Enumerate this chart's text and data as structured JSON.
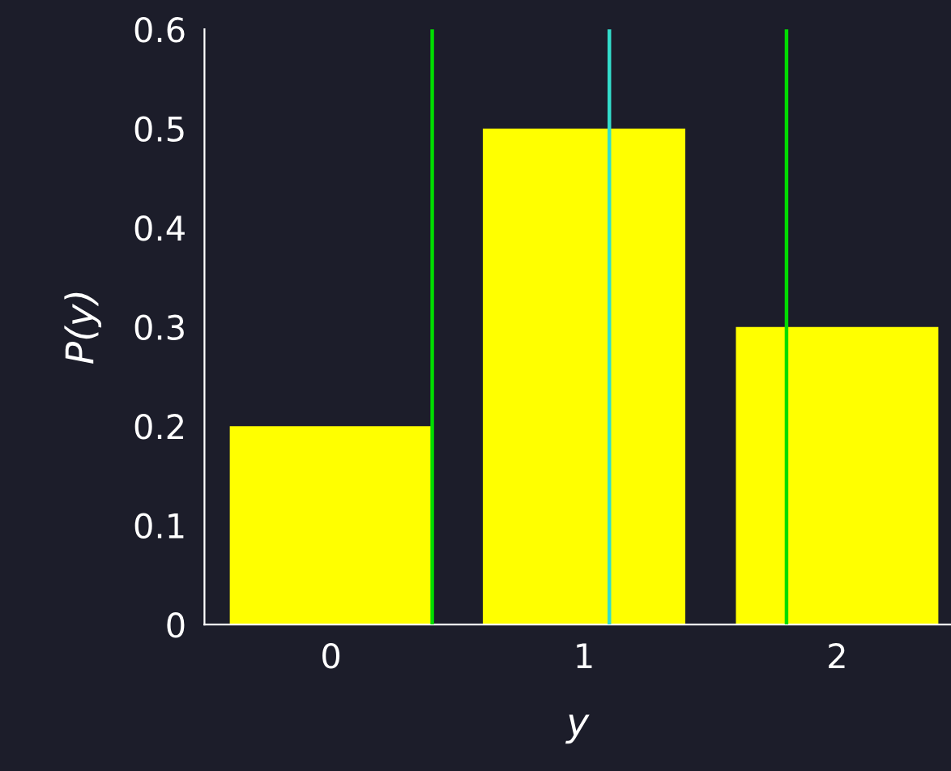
{
  "chart_data": {
    "type": "bar",
    "xlabel": "y",
    "ylabel": "P(y)",
    "x": [
      0,
      1,
      2
    ],
    "values": [
      0.2,
      0.5,
      0.3
    ],
    "color": "#ffff00",
    "xlim": [
      -0.5,
      2.45
    ],
    "xticks": [
      0,
      1,
      2
    ],
    "ylim": [
      0,
      0.6
    ],
    "yticks": [
      0,
      0.1,
      0.2,
      0.3,
      0.4,
      0.5,
      0.6
    ],
    "ref_lines": [
      {
        "axis": "x",
        "value": 0.4,
        "color": "#00dd00"
      },
      {
        "axis": "x",
        "value": 1.1,
        "color": "#33ddcc"
      },
      {
        "axis": "x",
        "value": 1.8,
        "color": "#00dd00"
      }
    ],
    "grid": false,
    "legend": false
  }
}
